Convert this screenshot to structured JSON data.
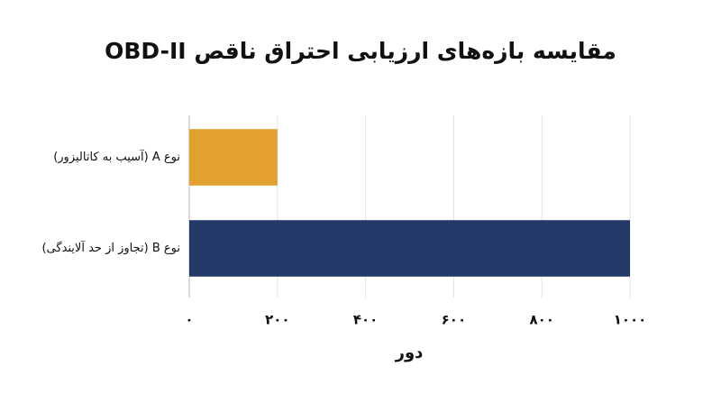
{
  "chart_data": {
    "type": "barh",
    "title": "مقایسه بازه‌های ارزیابی احتراق ناقص OBD-II",
    "categories": [
      "نوع A (آسیب به کاتالیزور)",
      "نوع B (تجاوز از حد آلایندگی)"
    ],
    "values": [
      200,
      1000
    ],
    "colors": [
      "#e1a02f",
      "#243b6a"
    ],
    "xlabel": "دور",
    "xlim": [
      0,
      1000
    ],
    "xticks": [
      {
        "value": 0,
        "label": "۰"
      },
      {
        "value": 200,
        "label": "۲۰۰"
      },
      {
        "value": 400,
        "label": "۴۰۰"
      },
      {
        "value": 600,
        "label": "۶۰۰"
      },
      {
        "value": 800,
        "label": "۸۰۰"
      },
      {
        "value": 1000,
        "label": "۱۰۰۰"
      }
    ],
    "grid": true
  }
}
